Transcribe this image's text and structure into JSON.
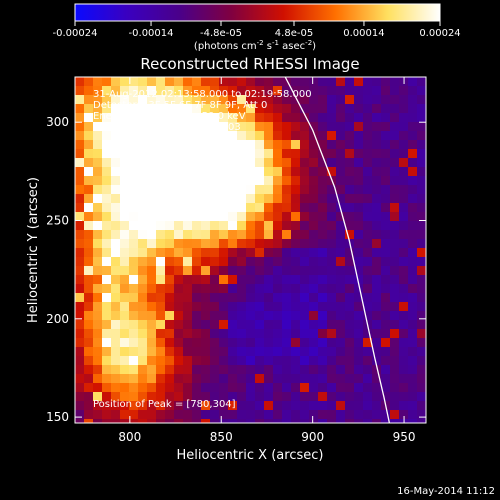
{
  "colorbar": {
    "ticks": [
      "-0.00024",
      "-0.00014",
      "-4.8e-05",
      "4.8e-05",
      "0.00014",
      "0.00024"
    ],
    "tick_values": [
      -0.00024,
      -0.00014,
      -4.8e-05,
      4.8e-05,
      0.00014,
      0.00024
    ],
    "range": [
      -0.00024,
      0.00024
    ],
    "units_main": "(photons cm",
    "units_exp1": "-2",
    "units_mid": " s",
    "units_exp2": "-1",
    "units_end": " asec",
    "units_exp3": "-2",
    "units_close": ")",
    "stops": [
      "#0a0aff",
      "#3a00c0",
      "#4a008a",
      "#800040",
      "#d01000",
      "#ff7000",
      "#ffe060",
      "#ffffff"
    ]
  },
  "chart_data": {
    "type": "heatmap",
    "title": "Reconstructed RHESSI Image",
    "xlabel": "Heliocentric X (arcsec)",
    "ylabel": "Heliocentric Y (arcsec)",
    "xlim": [
      770,
      962
    ],
    "ylim": [
      147,
      323
    ],
    "xticks": [
      800,
      850,
      900,
      950
    ],
    "yticks": [
      150,
      200,
      250,
      300
    ],
    "limb_curve": [
      [
        885,
        323
      ],
      [
        900,
        296
      ],
      [
        912,
        267
      ],
      [
        920,
        240
      ],
      [
        927,
        210
      ],
      [
        934,
        180
      ],
      [
        939,
        160
      ],
      [
        942,
        147
      ]
    ],
    "annotations": {
      "time": "31-Aug-2012 02:13:58.000 to 02:19:58.000",
      "detectors": "Detectors: 3F 5F 6F 7F 8F 9F, Att 0",
      "energy": "Energy Range: 25.0 - 50.0 keV",
      "method": "Clean    Total counts: 9.70E+03",
      "peak": "Position of Peak = [780,304]"
    }
  },
  "footer": {
    "date": "16-May-2014 11:12"
  }
}
